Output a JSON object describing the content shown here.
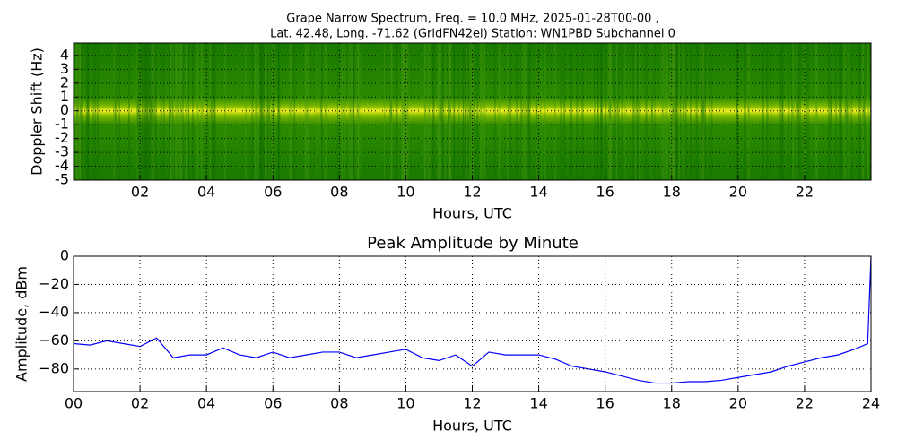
{
  "chart_data": [
    {
      "type": "spectrogram",
      "title": [
        "Grape Narrow Spectrum, Freq. = 10.0 MHz, 2025-01-28T00-00 ,",
        "Lat.  42.48, Long. -71.62 (GridFN42el) Station: WN1PBD Subchannel 0"
      ],
      "xlabel": "Hours, UTC",
      "ylabel": "Doppler Shift (Hz)",
      "xlim": [
        0,
        24
      ],
      "ylim": [
        -5,
        4.9
      ],
      "xticks": [
        {
          "value": 2,
          "label": "02"
        },
        {
          "value": 4,
          "label": "04"
        },
        {
          "value": 6,
          "label": "06"
        },
        {
          "value": 8,
          "label": "08"
        },
        10,
        12,
        14,
        16,
        18,
        20,
        22
      ],
      "yticks": [
        4,
        3,
        2,
        1,
        0,
        -1,
        -2,
        -3,
        -4,
        -5
      ],
      "grid": true
    },
    {
      "type": "line",
      "title": "Peak Amplitude by Minute",
      "xlabel": "Hours, UTC",
      "ylabel": "Amplitude, dBm",
      "xlim": [
        0,
        24
      ],
      "ylim": [
        -96,
        0
      ],
      "xticks": [
        {
          "value": 0,
          "label": "00"
        },
        {
          "value": 2,
          "label": "02"
        },
        {
          "value": 4,
          "label": "04"
        },
        {
          "value": 6,
          "label": "06"
        },
        {
          "value": 8,
          "label": "08"
        },
        10,
        12,
        14,
        16,
        18,
        20,
        22,
        24
      ],
      "yticks": [
        0,
        {
          "value": -20,
          "label": "−20"
        },
        {
          "value": -40,
          "label": "−40"
        },
        {
          "value": -60,
          "label": "−60"
        },
        {
          "value": -80,
          "label": "−80"
        }
      ],
      "grid": true,
      "color": "#0000ff",
      "x": [
        0,
        0.5,
        1,
        1.5,
        2,
        2.5,
        3,
        3.5,
        4,
        4.5,
        5,
        5.5,
        6,
        6.5,
        7,
        7.5,
        8,
        8.5,
        9,
        9.5,
        10,
        10.5,
        11,
        11.5,
        12,
        12.5,
        13,
        13.5,
        14,
        14.5,
        15,
        15.5,
        16,
        16.5,
        17,
        17.5,
        18,
        18.5,
        19,
        19.5,
        20,
        20.5,
        21,
        21.5,
        22,
        22.5,
        23,
        23.5,
        23.9,
        24
      ],
      "values": [
        -62,
        -63,
        -60,
        -62,
        -64,
        -58,
        -72,
        -70,
        -70,
        -65,
        -70,
        -72,
        -68,
        -72,
        -70,
        -68,
        -68,
        -72,
        -70,
        -68,
        -66,
        -72,
        -74,
        -70,
        -78,
        -68,
        -70,
        -70,
        -70,
        -73,
        -78,
        -80,
        -82,
        -85,
        -88,
        -90,
        -90,
        -89,
        -89,
        -88,
        -86,
        -84,
        -82,
        -78,
        -75,
        -72,
        -70,
        -66,
        -62,
        0
      ]
    }
  ]
}
